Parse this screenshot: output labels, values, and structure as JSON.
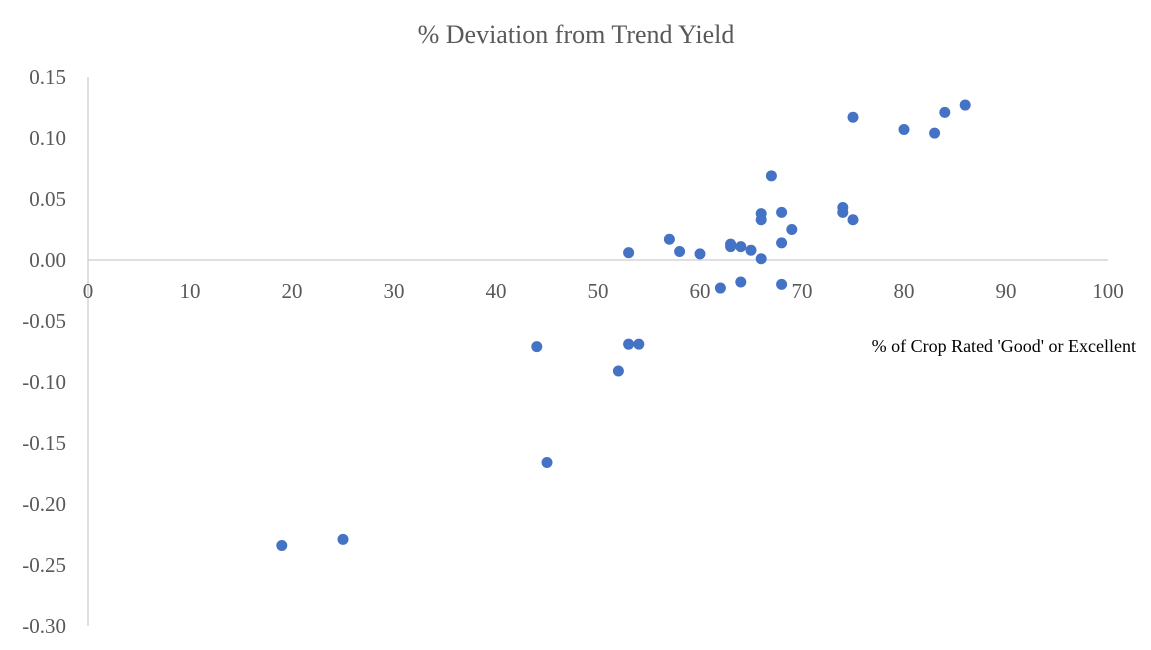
{
  "chart_data": {
    "type": "scatter",
    "title": "% Deviation  from Trend Yield",
    "xlabel": "% of Crop Rated 'Good' or Excellent",
    "ylabel": "",
    "xlim": [
      0,
      100
    ],
    "ylim": [
      -0.3,
      0.15
    ],
    "x_ticks": [
      "0",
      "10",
      "20",
      "30",
      "40",
      "50",
      "60",
      "70",
      "80",
      "90",
      "100"
    ],
    "y_ticks": [
      "0.15",
      "0.10",
      "0.05",
      "0.00",
      "-0.05",
      "-0.10",
      "-0.15",
      "-0.20",
      "-0.25",
      "-0.30"
    ],
    "grid": false,
    "marker_color": "#4472c4",
    "points": [
      {
        "x": 19,
        "y": -0.234
      },
      {
        "x": 25,
        "y": -0.229
      },
      {
        "x": 44,
        "y": -0.071
      },
      {
        "x": 45,
        "y": -0.166
      },
      {
        "x": 52,
        "y": -0.091
      },
      {
        "x": 53,
        "y": -0.069
      },
      {
        "x": 53,
        "y": 0.006
      },
      {
        "x": 54,
        "y": -0.069
      },
      {
        "x": 57,
        "y": 0.017
      },
      {
        "x": 58,
        "y": 0.007
      },
      {
        "x": 60,
        "y": 0.005
      },
      {
        "x": 62,
        "y": -0.023
      },
      {
        "x": 63,
        "y": 0.013
      },
      {
        "x": 63,
        "y": 0.011
      },
      {
        "x": 64,
        "y": 0.011
      },
      {
        "x": 64,
        "y": -0.018
      },
      {
        "x": 65,
        "y": 0.008
      },
      {
        "x": 66,
        "y": 0.038
      },
      {
        "x": 66,
        "y": 0.033
      },
      {
        "x": 66,
        "y": 0.001
      },
      {
        "x": 67,
        "y": 0.069
      },
      {
        "x": 68,
        "y": 0.039
      },
      {
        "x": 68,
        "y": 0.014
      },
      {
        "x": 68,
        "y": -0.02
      },
      {
        "x": 69,
        "y": 0.025
      },
      {
        "x": 74,
        "y": 0.043
      },
      {
        "x": 74,
        "y": 0.039
      },
      {
        "x": 75,
        "y": 0.033
      },
      {
        "x": 75,
        "y": 0.117
      },
      {
        "x": 80,
        "y": 0.107
      },
      {
        "x": 83,
        "y": 0.104
      },
      {
        "x": 84,
        "y": 0.121
      },
      {
        "x": 86,
        "y": 0.127
      }
    ]
  }
}
